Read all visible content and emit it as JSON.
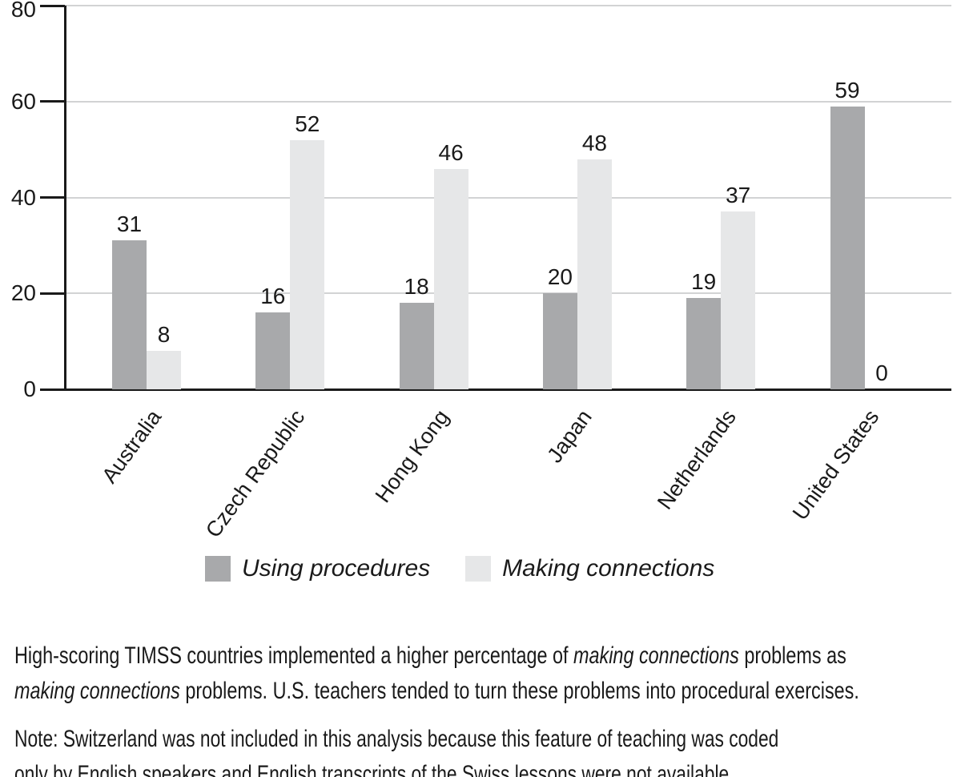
{
  "chart_data": {
    "type": "bar",
    "categories": [
      "Australia",
      "Czech Republic",
      "Hong Kong",
      "Japan",
      "Netherlands",
      "United States"
    ],
    "series": [
      {
        "name": "Using procedures",
        "color": "#a8a9ab",
        "values": [
          31,
          16,
          18,
          20,
          19,
          59
        ]
      },
      {
        "name": "Making connections",
        "color": "#e6e7e8",
        "values": [
          8,
          52,
          46,
          48,
          37,
          0
        ]
      }
    ],
    "title": "",
    "xlabel": "",
    "ylabel": "",
    "ylim": [
      0,
      80
    ],
    "yticks": [
      0,
      20,
      40,
      60,
      80
    ],
    "grid": true,
    "legend_position": "bottom",
    "bar_value_labels": true
  },
  "colors": {
    "axis": "#1a1a1a",
    "gridline": "#d2d3d4",
    "text": "#1a1a1a",
    "background": "#ffffff"
  },
  "legend": {
    "items": [
      {
        "label": "Using procedures",
        "color": "#a8a9ab"
      },
      {
        "label": "Making connections",
        "color": "#e6e7e8"
      }
    ]
  },
  "caption": {
    "lines": [
      [
        {
          "text": "High-scoring TIMSS countries implemented a higher percentage of ",
          "italic": false
        },
        {
          "text": "making connections",
          "italic": true
        },
        {
          "text": " problems as",
          "italic": false
        }
      ],
      [
        {
          "text": "making connections",
          "italic": true
        },
        {
          "text": " problems. U.S. teachers tended to turn these problems into procedural exercises.",
          "italic": false
        }
      ]
    ]
  },
  "note": {
    "lines": [
      [
        {
          "text": "Note: Switzerland was not included in this analysis because this feature of teaching was coded",
          "italic": false
        }
      ],
      [
        {
          "text": "only by English speakers and English transcripts of the Swiss lessons were not available.",
          "italic": false
        }
      ]
    ]
  }
}
